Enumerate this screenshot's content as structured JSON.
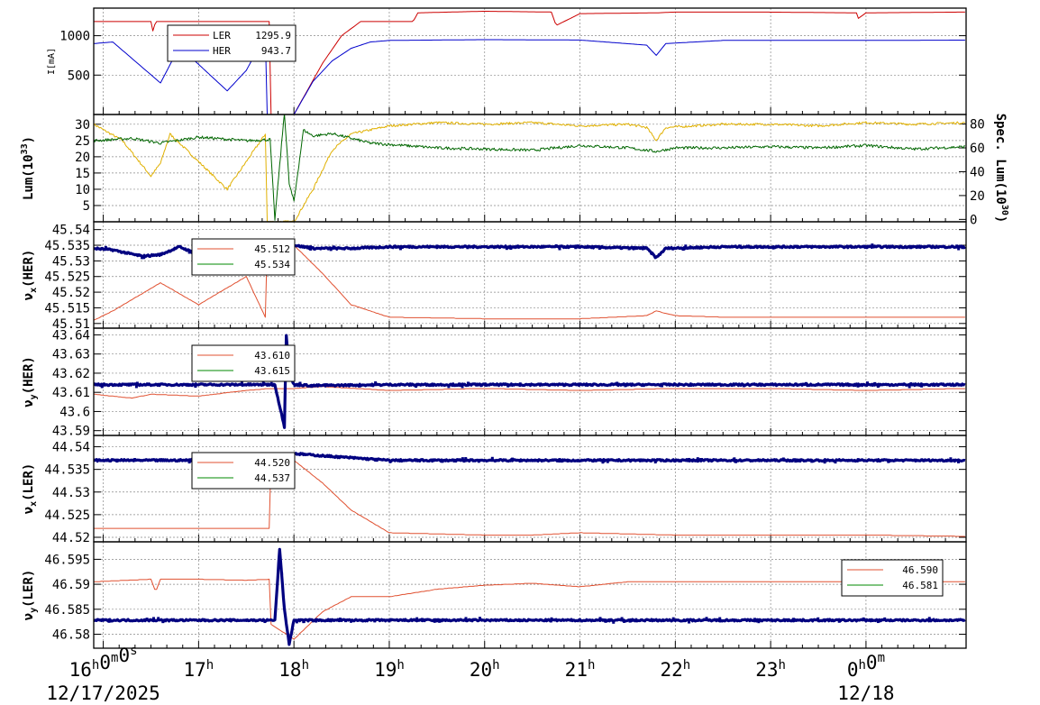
{
  "chart_data": {
    "type": "line",
    "time_axis": {
      "hours": [
        16,
        17,
        18,
        19,
        20,
        21,
        22,
        23,
        24
      ],
      "tick_labels": [
        {
          "main": "16",
          "sup": "h",
          "main2": "0",
          "sup2": "m",
          "main3": "0",
          "sup3": "s"
        },
        {
          "main": "17",
          "sup": "h"
        },
        {
          "main": "18",
          "sup": "h"
        },
        {
          "main": "19",
          "sup": "h"
        },
        {
          "main": "20",
          "sup": "h"
        },
        {
          "main": "21",
          "sup": "h"
        },
        {
          "main": "22",
          "sup": "h"
        },
        {
          "main": "23",
          "sup": "h"
        },
        {
          "main": "0",
          "sup": "h",
          "main2": "0",
          "sup2": "m"
        }
      ],
      "dates": [
        "12/17/2025",
        "12/18"
      ],
      "range_hours": [
        15.9,
        25.05
      ]
    },
    "colors": {
      "ler": "#cc0000",
      "her": "#0000cc",
      "lum": "#e0b000",
      "spec_lum": "#006600",
      "tune_ref": "#e05030",
      "tune_meas": "#000080",
      "tune_green": "#008800"
    },
    "panels": [
      {
        "id": "current",
        "ylabel": "I[mA]",
        "yticks": [
          "500",
          "1000"
        ],
        "ytick_values": [
          500,
          1000
        ],
        "ylim": [
          0,
          1350
        ],
        "legend": [
          {
            "name": "LER",
            "value": "1295.9",
            "color": "#cc0000"
          },
          {
            "name": "HER",
            "value": "943.7",
            "color": "#0000cc"
          }
        ],
        "series": [
          {
            "name": "LER",
            "color": "#cc0000",
            "x": [
              15.9,
              16.5,
              16.52,
              16.55,
              17.75,
              17.76,
              18.0,
              18.3,
              18.5,
              18.7,
              19.0,
              19.25,
              19.3,
              20.0,
              20.7,
              20.75,
              21.0,
              21.8,
              22.0,
              22.9,
              23.9,
              23.92,
              24.0,
              25.05
            ],
            "y": [
              1180,
              1180,
              1060,
              1180,
              1180,
              0,
              0,
              650,
              1000,
              1180,
              1180,
              1180,
              1290,
              1310,
              1300,
              1130,
              1280,
              1290,
              1300,
              1300,
              1290,
              1220,
              1290,
              1300
            ]
          },
          {
            "name": "HER",
            "color": "#0000cc",
            "x": [
              15.9,
              16.1,
              16.6,
              16.8,
              17.3,
              17.5,
              17.7,
              17.71,
              18.0,
              18.2,
              18.4,
              18.6,
              18.8,
              19.0,
              20.0,
              21.0,
              21.7,
              21.8,
              21.9,
              22.5,
              23.5,
              24.0,
              25.05
            ],
            "y": [
              900,
              920,
              400,
              860,
              300,
              560,
              1000,
              0,
              0,
              420,
              680,
              840,
              920,
              940,
              950,
              945,
              880,
              750,
              900,
              940,
              940,
              940,
              944
            ]
          }
        ]
      },
      {
        "id": "luminosity",
        "ylabel": "Lum(10",
        "ylabel_sup": "33",
        "ylabel_end": ")",
        "yticks": [
          "5",
          "10",
          "15",
          "20",
          "25",
          "30"
        ],
        "ytick_values": [
          5,
          10,
          15,
          20,
          25,
          30
        ],
        "ylim": [
          0,
          33
        ],
        "y2label": "Spec. Lum(10",
        "y2label_sup": "30",
        "y2label_end": ")",
        "y2ticks": [
          "0",
          "20",
          "40",
          "60",
          "80"
        ],
        "y2tick_values": [
          0,
          20,
          40,
          60,
          80
        ],
        "y2lim": [
          -2,
          88
        ],
        "series": [
          {
            "name": "Lum",
            "color": "#e0b000",
            "x": [
              15.9,
              16.2,
              16.5,
              16.6,
              16.7,
              17.3,
              17.7,
              17.72,
              18.0,
              18.2,
              18.4,
              18.6,
              19.0,
              19.5,
              20.0,
              20.5,
              21.0,
              21.5,
              21.7,
              21.8,
              21.9,
              22.5,
              23.0,
              23.5,
              24.0,
              24.5,
              25.05
            ],
            "y": [
              30,
              25,
              14,
              18,
              27,
              10,
              27,
              0,
              0,
              10,
              22,
              27,
              29.5,
              30.5,
              30,
              30.5,
              29.5,
              30,
              29,
              25,
              29,
              30,
              30,
              29.5,
              30.5,
              30,
              30.5
            ]
          },
          {
            "name": "Spec. Lum",
            "color": "#006600",
            "axis": "right",
            "x": [
              15.9,
              16.3,
              16.6,
              17.0,
              17.5,
              17.75,
              17.8,
              17.9,
              17.95,
              18.0,
              18.1,
              18.2,
              18.4,
              18.8,
              19.5,
              20.5,
              21.0,
              21.5,
              21.8,
              22.0,
              22.5,
              23.0,
              23.5,
              24.0,
              24.5,
              25.05
            ],
            "y": [
              66,
              68,
              64,
              69,
              66,
              67,
              0,
              90,
              30,
              15,
              75,
              70,
              72,
              64,
              60,
              58,
              62,
              60,
              57,
              60,
              60,
              61,
              60,
              62,
              59,
              61
            ]
          }
        ]
      },
      {
        "id": "nux_her",
        "ylabel": "ν",
        "ylabel_sub": "x",
        "ylabel_end": "(HER)",
        "yticks": [
          "45.51",
          "45.515",
          "45.52",
          "45.525",
          "45.53",
          "45.535",
          "45.54"
        ],
        "ytick_values": [
          45.51,
          45.515,
          45.52,
          45.525,
          45.53,
          45.535,
          45.54
        ],
        "ylim": [
          45.5085,
          45.5425
        ],
        "legend": [
          {
            "name": "",
            "value": "45.512",
            "color": "#e05030"
          },
          {
            "name": "",
            "value": "45.534",
            "color": "#008800"
          }
        ],
        "series": [
          {
            "name": "ref",
            "color": "#e05030",
            "x": [
              15.9,
              16.1,
              16.6,
              17.0,
              17.5,
              17.7,
              17.72,
              18.0,
              18.3,
              18.6,
              19.0,
              20.0,
              21.0,
              21.7,
              21.8,
              22.0,
              22.5,
              23.0,
              24.0,
              25.05
            ],
            "y": [
              45.511,
              45.514,
              45.523,
              45.516,
              45.525,
              45.512,
              45.535,
              45.535,
              45.526,
              45.516,
              45.512,
              45.5115,
              45.5115,
              45.5125,
              45.514,
              45.5125,
              45.512,
              45.512,
              45.512,
              45.512
            ]
          },
          {
            "name": "meas",
            "color": "#000080",
            "style": "thick",
            "x": [
              15.9,
              16.1,
              16.4,
              16.6,
              16.8,
              17.0,
              17.3,
              17.6,
              17.9,
              18.2,
              18.6,
              19.0,
              20.0,
              21.0,
              21.7,
              21.8,
              21.9,
              22.5,
              23.5,
              25.05
            ],
            "y": [
              45.534,
              45.5335,
              45.5315,
              45.532,
              45.5345,
              45.532,
              45.532,
              45.534,
              45.5355,
              45.534,
              45.534,
              45.5345,
              45.5345,
              45.5345,
              45.534,
              45.531,
              45.534,
              45.5345,
              45.5345,
              45.5345
            ]
          }
        ]
      },
      {
        "id": "nuy_her",
        "ylabel": "ν",
        "ylabel_sub": "y",
        "ylabel_end": "(HER)",
        "yticks": [
          "43.59",
          "43.6",
          "43.61",
          "43.62",
          "43.63",
          "43.64"
        ],
        "ytick_values": [
          43.59,
          43.6,
          43.61,
          43.62,
          43.63,
          43.64
        ],
        "ylim": [
          43.5875,
          43.6435
        ],
        "legend": [
          {
            "name": "",
            "value": "43.610",
            "color": "#e05030"
          },
          {
            "name": "",
            "value": "43.615",
            "color": "#008800"
          }
        ],
        "series": [
          {
            "name": "ref",
            "color": "#e05030",
            "x": [
              15.9,
              16.3,
              16.5,
              17.0,
              17.5,
              17.75,
              18.0,
              18.3,
              19.0,
              20.0,
              21.0,
              22.0,
              23.0,
              24.0,
              25.05
            ],
            "y": [
              43.609,
              43.607,
              43.609,
              43.608,
              43.611,
              43.612,
              43.612,
              43.613,
              43.611,
              43.612,
              43.611,
              43.612,
              43.612,
              43.611,
              43.612
            ]
          },
          {
            "name": "meas",
            "color": "#000080",
            "style": "thick",
            "x": [
              15.9,
              16.5,
              17.0,
              17.5,
              17.8,
              17.9,
              17.92,
              17.95,
              18.0,
              18.2,
              19.0,
              20.0,
              21.0,
              22.0,
              23.0,
              24.0,
              25.05
            ],
            "y": [
              43.614,
              43.614,
              43.614,
              43.614,
              43.614,
              43.592,
              43.64,
              43.62,
              43.614,
              43.6135,
              43.614,
              43.614,
              43.614,
              43.614,
              43.614,
              43.614,
              43.614
            ]
          }
        ]
      },
      {
        "id": "nux_ler",
        "ylabel": "ν",
        "ylabel_sub": "x",
        "ylabel_end": "(LER)",
        "yticks": [
          "44.52",
          "44.525",
          "44.53",
          "44.535",
          "44.54"
        ],
        "ytick_values": [
          44.52,
          44.525,
          44.53,
          44.535,
          44.54
        ],
        "ylim": [
          44.519,
          44.5425
        ],
        "legend": [
          {
            "name": "",
            "value": "44.520",
            "color": "#e05030"
          },
          {
            "name": "",
            "value": "44.537",
            "color": "#008800"
          }
        ],
        "series": [
          {
            "name": "ref",
            "color": "#e05030",
            "x": [
              15.9,
              16.5,
              17.0,
              17.75,
              17.76,
              18.0,
              18.3,
              18.6,
              19.0,
              20.0,
              20.5,
              21.0,
              22.0,
              23.0,
              24.0,
              25.05
            ],
            "y": [
              44.522,
              44.522,
              44.522,
              44.522,
              44.538,
              44.537,
              44.532,
              44.526,
              44.521,
              44.5205,
              44.5205,
              44.521,
              44.5205,
              44.5205,
              44.5205,
              44.5202
            ]
          },
          {
            "name": "meas",
            "color": "#000080",
            "style": "thick",
            "x": [
              15.9,
              16.5,
              17.0,
              17.5,
              17.8,
              18.0,
              18.3,
              19.0,
              20.0,
              21.0,
              22.0,
              23.0,
              24.0,
              25.05
            ],
            "y": [
              44.537,
              44.537,
              44.537,
              44.537,
              44.537,
              44.5385,
              44.538,
              44.537,
              44.537,
              44.537,
              44.537,
              44.537,
              44.537,
              44.537
            ]
          }
        ]
      },
      {
        "id": "nuy_ler",
        "ylabel": "ν",
        "ylabel_sub": "y",
        "ylabel_end": "(LER)",
        "yticks": [
          "46.58",
          "46.585",
          "46.59",
          "46.595"
        ],
        "ytick_values": [
          46.58,
          46.585,
          46.59,
          46.595
        ],
        "ylim": [
          46.5772,
          46.5985
        ],
        "legend": [
          {
            "name": "",
            "value": "46.590",
            "color": "#e05030"
          },
          {
            "name": "",
            "value": "46.581",
            "color": "#008800"
          }
        ],
        "series": [
          {
            "name": "ref",
            "color": "#e05030",
            "x": [
              15.9,
              16.5,
              16.55,
              16.6,
              17.0,
              17.5,
              17.75,
              17.76,
              18.0,
              18.3,
              18.6,
              19.0,
              19.5,
              20.0,
              20.5,
              21.0,
              21.5,
              22.0,
              22.5,
              23.0,
              24.0,
              25.05
            ],
            "y": [
              46.5905,
              46.591,
              46.5885,
              46.591,
              46.591,
              46.5908,
              46.591,
              46.582,
              46.579,
              46.5845,
              46.5875,
              46.5875,
              46.589,
              46.5898,
              46.5902,
              46.5895,
              46.5905,
              46.5905,
              46.5905,
              46.5905,
              46.5905,
              46.5905
            ]
          },
          {
            "name": "meas",
            "color": "#000080",
            "style": "thick",
            "x": [
              15.9,
              16.5,
              17.0,
              17.5,
              17.8,
              17.85,
              17.9,
              17.95,
              18.0,
              18.5,
              19.0,
              20.0,
              21.0,
              22.0,
              23.0,
              24.0,
              25.05
            ],
            "y": [
              46.5828,
              46.5828,
              46.5828,
              46.5828,
              46.5828,
              46.597,
              46.585,
              46.578,
              46.5828,
              46.5828,
              46.5828,
              46.5828,
              46.5828,
              46.5828,
              46.5828,
              46.5828,
              46.5828
            ]
          }
        ]
      }
    ]
  }
}
